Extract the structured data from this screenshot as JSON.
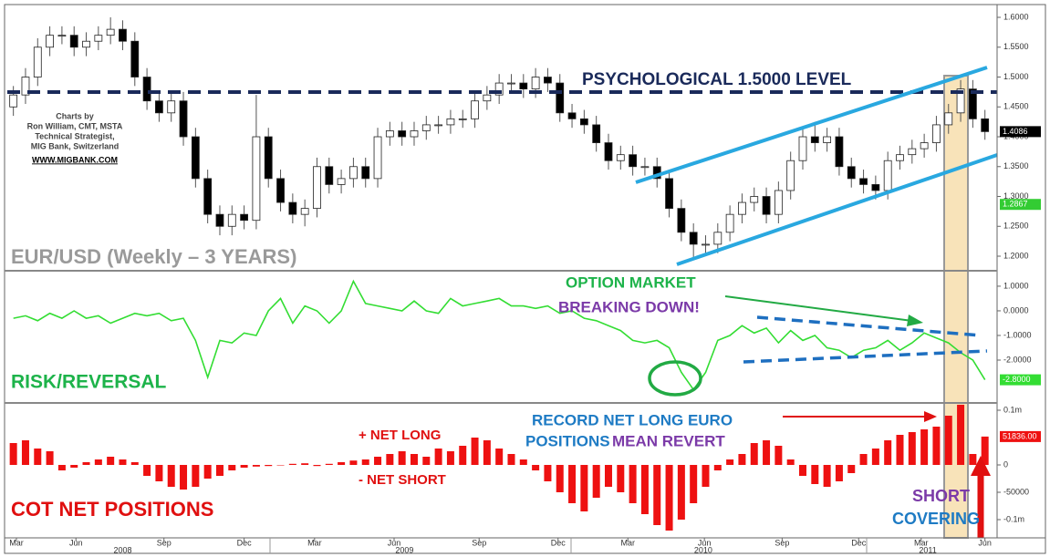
{
  "chart_data": [
    {
      "type": "candlestick",
      "title": "EUR/USD (Weekly – 3 YEARS)",
      "x": [
        0,
        2,
        4,
        6,
        8,
        10,
        12,
        14,
        16,
        18,
        20,
        22,
        24,
        26,
        28,
        30,
        32,
        34,
        36,
        38,
        40,
        42,
        44,
        46,
        48,
        50,
        52,
        54,
        56,
        58,
        60,
        62,
        64,
        66,
        68,
        70,
        72,
        74,
        76,
        78,
        80,
        82,
        84,
        86,
        88,
        90,
        92,
        94,
        96,
        98,
        100,
        102,
        104,
        106,
        108,
        110,
        112,
        114,
        116,
        118,
        120,
        122,
        124,
        126,
        128,
        130,
        132,
        134,
        136,
        138,
        140,
        142,
        144,
        146,
        148,
        150,
        152,
        154,
        156,
        158,
        160
      ],
      "open": [
        1.45,
        1.47,
        1.5,
        1.55,
        1.57,
        1.57,
        1.55,
        1.56,
        1.57,
        1.58,
        1.56,
        1.5,
        1.46,
        1.44,
        1.46,
        1.4,
        1.33,
        1.27,
        1.25,
        1.27,
        1.26,
        1.4,
        1.33,
        1.29,
        1.27,
        1.28,
        1.35,
        1.32,
        1.33,
        1.35,
        1.33,
        1.4,
        1.41,
        1.4,
        1.41,
        1.42,
        1.42,
        1.43,
        1.43,
        1.46,
        1.47,
        1.49,
        1.49,
        1.48,
        1.5,
        1.49,
        1.44,
        1.43,
        1.42,
        1.39,
        1.36,
        1.37,
        1.35,
        1.35,
        1.33,
        1.28,
        1.24,
        1.22,
        1.22,
        1.24,
        1.27,
        1.29,
        1.3,
        1.27,
        1.31,
        1.36,
        1.4,
        1.39,
        1.4,
        1.35,
        1.33,
        1.32,
        1.31,
        1.36,
        1.37,
        1.38,
        1.39,
        1.42,
        1.44,
        1.48,
        1.43
      ],
      "high": [
        1.485,
        1.515,
        1.565,
        1.585,
        1.585,
        1.585,
        1.575,
        1.585,
        1.6,
        1.595,
        1.575,
        1.515,
        1.475,
        1.475,
        1.475,
        1.415,
        1.345,
        1.285,
        1.285,
        1.285,
        1.47,
        1.415,
        1.345,
        1.305,
        1.295,
        1.365,
        1.365,
        1.345,
        1.365,
        1.365,
        1.415,
        1.425,
        1.425,
        1.425,
        1.435,
        1.435,
        1.445,
        1.445,
        1.475,
        1.485,
        1.505,
        1.505,
        1.505,
        1.515,
        1.515,
        1.505,
        1.455,
        1.445,
        1.435,
        1.405,
        1.385,
        1.385,
        1.365,
        1.365,
        1.345,
        1.295,
        1.255,
        1.235,
        1.255,
        1.285,
        1.305,
        1.315,
        1.315,
        1.325,
        1.375,
        1.415,
        1.425,
        1.415,
        1.415,
        1.365,
        1.345,
        1.335,
        1.375,
        1.385,
        1.395,
        1.405,
        1.435,
        1.455,
        1.495,
        1.495,
        1.445
      ],
      "low": [
        1.435,
        1.455,
        1.485,
        1.535,
        1.555,
        1.535,
        1.535,
        1.545,
        1.555,
        1.545,
        1.485,
        1.445,
        1.425,
        1.425,
        1.385,
        1.315,
        1.255,
        1.235,
        1.235,
        1.245,
        1.245,
        1.315,
        1.275,
        1.255,
        1.25,
        1.265,
        1.305,
        1.305,
        1.315,
        1.315,
        1.315,
        1.385,
        1.385,
        1.385,
        1.395,
        1.405,
        1.405,
        1.415,
        1.415,
        1.445,
        1.455,
        1.475,
        1.465,
        1.465,
        1.475,
        1.425,
        1.415,
        1.405,
        1.375,
        1.345,
        1.345,
        1.335,
        1.335,
        1.315,
        1.265,
        1.225,
        1.195,
        1.205,
        1.205,
        1.225,
        1.255,
        1.275,
        1.255,
        1.255,
        1.295,
        1.345,
        1.375,
        1.375,
        1.335,
        1.315,
        1.305,
        1.295,
        1.295,
        1.345,
        1.355,
        1.365,
        1.375,
        1.405,
        1.425,
        1.415,
        1.395
      ],
      "close": [
        1.47,
        1.5,
        1.55,
        1.57,
        1.57,
        1.55,
        1.56,
        1.57,
        1.58,
        1.56,
        1.5,
        1.46,
        1.44,
        1.46,
        1.4,
        1.33,
        1.27,
        1.25,
        1.27,
        1.26,
        1.4,
        1.33,
        1.29,
        1.27,
        1.28,
        1.35,
        1.32,
        1.33,
        1.35,
        1.33,
        1.4,
        1.41,
        1.4,
        1.41,
        1.42,
        1.42,
        1.43,
        1.43,
        1.46,
        1.47,
        1.49,
        1.49,
        1.48,
        1.5,
        1.49,
        1.44,
        1.43,
        1.42,
        1.39,
        1.36,
        1.37,
        1.35,
        1.35,
        1.33,
        1.28,
        1.24,
        1.22,
        1.22,
        1.24,
        1.27,
        1.29,
        1.3,
        1.27,
        1.31,
        1.36,
        1.4,
        1.39,
        1.4,
        1.35,
        1.33,
        1.32,
        1.31,
        1.36,
        1.37,
        1.38,
        1.39,
        1.42,
        1.44,
        1.48,
        1.43,
        1.4086
      ],
      "xlim": [
        -1,
        162
      ],
      "ylim": [
        1.1756,
        1.6214
      ],
      "yticks": [
        {
          "value": 1.6,
          "label": "1.6000"
        },
        {
          "value": 1.55,
          "label": "1.5500"
        },
        {
          "value": 1.5,
          "label": "1.5000"
        },
        {
          "value": 1.45,
          "label": "1.4500"
        },
        {
          "value": 1.4,
          "label": "1.4000"
        },
        {
          "value": 1.35,
          "label": "1.3500"
        },
        {
          "value": 1.3,
          "label": "1.3000"
        },
        {
          "value": 1.25,
          "label": "1.2500"
        },
        {
          "value": 1.2,
          "label": "1.2000"
        }
      ],
      "price_labels": [
        {
          "value": 1.4086,
          "label": "1.4086",
          "color": "#000000"
        },
        {
          "value": 1.2867,
          "label": "1.2867",
          "color": "#33cc33"
        }
      ]
    },
    {
      "type": "line",
      "title": "RISK/REVERSAL",
      "x": [
        0,
        2,
        4,
        6,
        8,
        10,
        12,
        14,
        16,
        18,
        20,
        22,
        24,
        26,
        28,
        30,
        32,
        34,
        36,
        38,
        40,
        42,
        44,
        46,
        48,
        50,
        52,
        54,
        56,
        58,
        60,
        62,
        64,
        66,
        68,
        70,
        72,
        74,
        76,
        78,
        80,
        82,
        84,
        86,
        88,
        90,
        92,
        94,
        96,
        98,
        100,
        102,
        104,
        106,
        108,
        110,
        112,
        114,
        116,
        118,
        120,
        122,
        124,
        126,
        128,
        130,
        132,
        134,
        136,
        138,
        140,
        142,
        144,
        146,
        148,
        150,
        152,
        154,
        156,
        158,
        160
      ],
      "series": [
        {
          "color": "#33dd33",
          "values": [
            -0.3,
            -0.2,
            -0.4,
            -0.1,
            -0.3,
            0,
            -0.3,
            -0.2,
            -0.5,
            -0.3,
            -0.1,
            -0.2,
            -0.1,
            -0.4,
            -0.3,
            -1.2,
            -2.7,
            -1.2,
            -1.3,
            -0.9,
            -1.0,
            0,
            0.5,
            -0.5,
            0.2,
            0,
            -0.5,
            0,
            1.2,
            0.3,
            0.2,
            0.1,
            0,
            0.4,
            0,
            -0.1,
            0.5,
            0.2,
            0.3,
            0.4,
            0.5,
            0.2,
            0.2,
            0.1,
            0.2,
            -0.1,
            0,
            -0.3,
            -0.4,
            -0.6,
            -0.8,
            -1.2,
            -1.3,
            -1.2,
            -1.5,
            -2.5,
            -3.2,
            -2.5,
            -1.2,
            -1.0,
            -0.6,
            -0.9,
            -0.7,
            -1.3,
            -0.8,
            -1.2,
            -1.0,
            -1.5,
            -1.6,
            -1.9,
            -1.6,
            -1.5,
            -1.2,
            -1.6,
            -1.3,
            -0.9,
            -1.1,
            -1.3,
            -1.7,
            -2.0,
            -2.8
          ]
        }
      ],
      "xlim": [
        -1,
        162
      ],
      "ylim": [
        -3.74,
        1.59
      ],
      "yticks": [
        {
          "value": 1,
          "label": "1.0000"
        },
        {
          "value": 0,
          "label": "0.0000"
        },
        {
          "value": -1,
          "label": "-1.0000"
        },
        {
          "value": -2,
          "label": "-2.0000"
        }
      ],
      "price_labels": [
        {
          "value": -2.8,
          "label": "-2.8000",
          "color": "#33dd33"
        }
      ]
    },
    {
      "type": "bar",
      "title": "COT NET POSITIONS",
      "x": [
        0,
        2,
        4,
        6,
        8,
        10,
        12,
        14,
        16,
        18,
        20,
        22,
        24,
        26,
        28,
        30,
        32,
        34,
        36,
        38,
        40,
        42,
        44,
        46,
        48,
        50,
        52,
        54,
        56,
        58,
        60,
        62,
        64,
        66,
        68,
        70,
        72,
        74,
        76,
        78,
        80,
        82,
        84,
        86,
        88,
        90,
        92,
        94,
        96,
        98,
        100,
        102,
        104,
        106,
        108,
        110,
        112,
        114,
        116,
        118,
        120,
        122,
        124,
        126,
        128,
        130,
        132,
        134,
        136,
        138,
        140,
        142,
        144,
        146,
        148,
        150,
        152,
        154,
        156,
        158,
        160
      ],
      "values": [
        40000,
        45000,
        30000,
        25000,
        -10000,
        -5000,
        5000,
        10000,
        15000,
        10000,
        5000,
        -20000,
        -30000,
        -40000,
        -45000,
        -40000,
        -25000,
        -20000,
        -10000,
        -5000,
        -3000,
        -2000,
        0,
        2000,
        3000,
        -2000,
        2000,
        5000,
        8000,
        10000,
        15000,
        20000,
        25000,
        20000,
        15000,
        30000,
        25000,
        35000,
        50000,
        45000,
        30000,
        20000,
        10000,
        -10000,
        -30000,
        -50000,
        -70000,
        -85000,
        -60000,
        -40000,
        -50000,
        -70000,
        -90000,
        -110000,
        -120000,
        -100000,
        -70000,
        -40000,
        -10000,
        10000,
        20000,
        40000,
        45000,
        35000,
        10000,
        -20000,
        -35000,
        -40000,
        -30000,
        -15000,
        20000,
        30000,
        45000,
        55000,
        60000,
        65000,
        70000,
        90000,
        110000,
        20000,
        51836
      ],
      "color": "#ee1111",
      "xlim": [
        -1,
        162
      ],
      "ylim": [
        -133333,
        111667
      ],
      "yticks": [
        {
          "value": 100000,
          "label": "0.1m"
        },
        0,
        -50000,
        {
          "value": -100000,
          "label": "-0.1m"
        }
      ],
      "price_labels": [
        {
          "value": 51836,
          "label": "51836.00",
          "color": "#ee1111"
        }
      ],
      "xticks": [
        {
          "value": 0.5,
          "label": "Mar"
        },
        {
          "value": 10.3,
          "label": "Jun"
        },
        {
          "value": 24.8,
          "label": "Sep"
        },
        {
          "value": 38,
          "label": "Dec"
        },
        {
          "value": 49.6,
          "label": "Mar"
        },
        {
          "value": 62.7,
          "label": "Jun"
        },
        {
          "value": 76.7,
          "label": "Sep"
        },
        {
          "value": 89.7,
          "label": "Dec"
        },
        {
          "value": 101.2,
          "label": "Mar"
        },
        {
          "value": 113.8,
          "label": "Jun"
        },
        {
          "value": 126.6,
          "label": "Sep"
        },
        {
          "value": 139.2,
          "label": "Dec"
        },
        {
          "value": 149.5,
          "label": "Mar"
        },
        {
          "value": 160,
          "label": "Jun"
        }
      ],
      "year_ticks": [
        {
          "value": 18,
          "label": "2008"
        },
        {
          "value": 64.4,
          "label": "2009"
        },
        {
          "value": 113.6,
          "label": "2010"
        },
        {
          "value": 150.6,
          "label": "2011"
        }
      ]
    }
  ],
  "annotations": {
    "level": "PSYCHOLOGICAL 1.5000 LEVEL",
    "credit": [
      "Charts by",
      "Ron William, CMT, MSTA",
      "Technical Strategist,",
      "MIG Bank, Switzerland",
      "WWW.MIGBANK.COM"
    ],
    "option_1": "OPTION MARKET",
    "option_2": "BREAKING DOWN!",
    "record_1": "RECORD NET LONG EURO",
    "record_2": "POSITIONS",
    "record_3": "MEAN REVERT",
    "net_long": "+ NET LONG",
    "net_short": "- NET SHORT",
    "short_1": "SHORT",
    "short_2": "COVERING"
  }
}
